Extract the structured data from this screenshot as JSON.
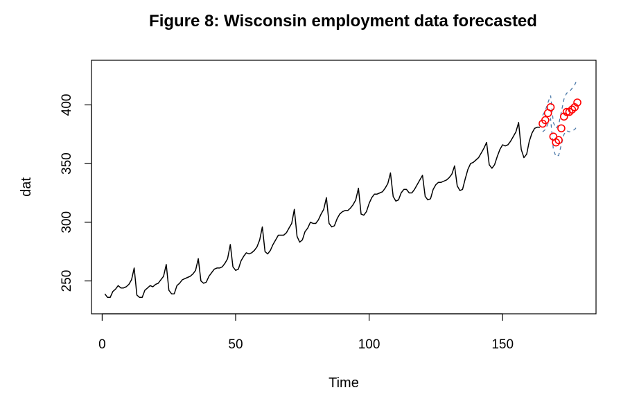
{
  "chart_data": {
    "type": "line",
    "title": "Figure 8: Wisconsin employment data forecasted",
    "xlabel": "Time",
    "ylabel": "dat",
    "xlim": [
      -4,
      185
    ],
    "ylim": [
      222,
      438
    ],
    "x_ticks": [
      0,
      50,
      100,
      150
    ],
    "y_ticks": [
      250,
      300,
      350,
      400
    ],
    "grid": false,
    "legend": "none",
    "colors": {
      "observed": "#000000",
      "forecast_points": "#ff0000",
      "interval": "#4a78a8"
    },
    "series": [
      {
        "values": [
          239,
          236,
          236,
          241,
          243,
          246,
          244,
          244,
          245,
          247,
          251,
          261,
          238,
          236,
          236,
          242,
          244,
          246,
          245,
          247,
          248,
          251,
          254,
          264,
          242,
          239,
          239,
          246,
          248,
          251,
          252,
          253,
          254,
          256,
          259,
          269,
          250,
          248,
          249,
          254,
          257,
          260,
          261,
          261,
          262,
          265,
          269,
          281,
          262,
          259,
          260,
          267,
          271,
          274,
          273,
          274,
          276,
          279,
          285,
          296,
          275,
          273,
          276,
          281,
          285,
          289,
          289,
          289,
          291,
          295,
          299,
          311,
          288,
          283,
          285,
          292,
          295,
          300,
          299,
          299,
          302,
          307,
          311,
          321,
          299,
          296,
          297,
          303,
          307,
          309,
          310,
          310,
          312,
          315,
          319,
          329,
          307,
          306,
          309,
          316,
          321,
          324,
          324,
          325,
          326,
          329,
          333,
          342,
          322,
          318,
          319,
          325,
          328,
          328,
          325,
          325,
          328,
          332,
          336,
          340,
          322,
          319,
          320,
          328,
          332,
          334,
          334,
          335,
          336,
          338,
          341,
          348,
          331,
          327,
          328,
          337,
          345,
          350,
          351,
          353,
          355,
          359,
          363,
          368,
          349,
          346,
          349,
          356,
          362,
          366,
          365,
          366,
          369,
          373,
          377,
          385,
          362,
          355,
          358,
          369,
          376,
          380,
          381,
          381
        ]
      }
    ],
    "forecast": {
      "x": [
        165,
        166,
        167,
        168,
        169,
        170,
        171,
        172,
        173,
        174,
        175,
        176,
        177,
        178
      ],
      "values": [
        384,
        387,
        393,
        398,
        373,
        368,
        370,
        380,
        390,
        394,
        394,
        396,
        398,
        402
      ],
      "lower": [
        377,
        379,
        384,
        388,
        362,
        356,
        357,
        366,
        375,
        378,
        377,
        378,
        379,
        382
      ],
      "upper": [
        391,
        395,
        402,
        408,
        385,
        380,
        383,
        394,
        405,
        410,
        411,
        414,
        417,
        422
      ]
    }
  }
}
